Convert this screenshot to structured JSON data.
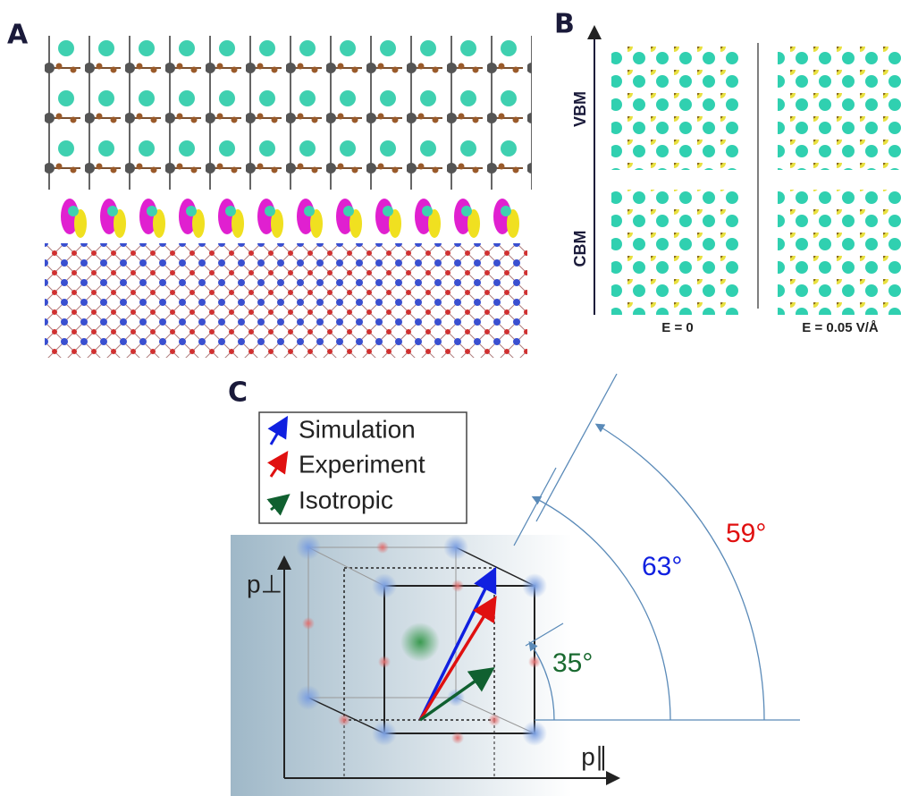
{
  "panels": {
    "a": {
      "label": "A"
    },
    "b": {
      "label": "B",
      "row_labels": [
        "VBM",
        "CBM"
      ],
      "column_labels": [
        "E = 0",
        "E = 0.05 V/Å"
      ]
    },
    "c": {
      "label": "C",
      "legend": [
        "Simulation",
        "Experiment",
        "Isotropic"
      ],
      "axis_labels": {
        "y": "p⊥",
        "x": "p∥"
      },
      "angle_labels": [
        "63°",
        "59°",
        "35°"
      ]
    }
  }
}
